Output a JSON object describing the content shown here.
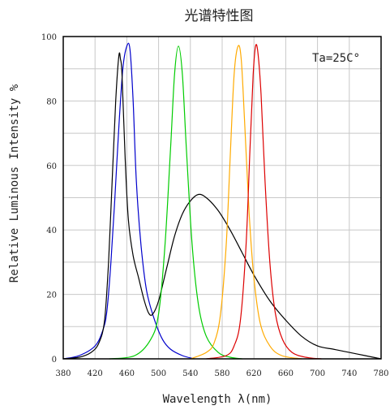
{
  "chart_data": {
    "type": "line",
    "title": "光谱特性图",
    "xlabel": "Wavelength λ(nm)",
    "ylabel": "Relative Luminous Intensity %",
    "annotation": "Ta=25C°",
    "xlim": [
      380,
      780
    ],
    "ylim": [
      0,
      100
    ],
    "xticks": [
      380,
      420,
      460,
      500,
      540,
      580,
      620,
      660,
      700,
      740,
      780
    ],
    "yticks": [
      0,
      20,
      40,
      60,
      80,
      100
    ],
    "grid": true,
    "legend": "none",
    "series": [
      {
        "color": "#0000cc",
        "points": [
          [
            380,
            0
          ],
          [
            400,
            1
          ],
          [
            420,
            4
          ],
          [
            430,
            9
          ],
          [
            435,
            15
          ],
          [
            440,
            30
          ],
          [
            445,
            50
          ],
          [
            450,
            72
          ],
          [
            455,
            90
          ],
          [
            460,
            97
          ],
          [
            464,
            96
          ],
          [
            468,
            80
          ],
          [
            472,
            55
          ],
          [
            478,
            35
          ],
          [
            485,
            21
          ],
          [
            495,
            12
          ],
          [
            505,
            6
          ],
          [
            515,
            3
          ],
          [
            530,
            1
          ],
          [
            545,
            0
          ]
        ]
      },
      {
        "color": "#000000",
        "points": [
          [
            380,
            0
          ],
          [
            400,
            0.5
          ],
          [
            415,
            2
          ],
          [
            425,
            5
          ],
          [
            432,
            12
          ],
          [
            437,
            30
          ],
          [
            442,
            58
          ],
          [
            446,
            80
          ],
          [
            450,
            94
          ],
          [
            452,
            93
          ],
          [
            454,
            88
          ],
          [
            458,
            62
          ],
          [
            462,
            43
          ],
          [
            468,
            32
          ],
          [
            475,
            25
          ],
          [
            482,
            18
          ],
          [
            488,
            14
          ],
          [
            493,
            14
          ],
          [
            500,
            18
          ],
          [
            510,
            28
          ],
          [
            520,
            38
          ],
          [
            530,
            45
          ],
          [
            540,
            49
          ],
          [
            550,
            51
          ],
          [
            560,
            50
          ],
          [
            575,
            46
          ],
          [
            590,
            40
          ],
          [
            605,
            33
          ],
          [
            620,
            26
          ],
          [
            640,
            18
          ],
          [
            660,
            12
          ],
          [
            680,
            7
          ],
          [
            700,
            4
          ],
          [
            720,
            3
          ],
          [
            740,
            2
          ],
          [
            760,
            1
          ],
          [
            780,
            0
          ]
        ]
      },
      {
        "color": "#00cc00",
        "points": [
          [
            438,
            0
          ],
          [
            470,
            1
          ],
          [
            490,
            6
          ],
          [
            500,
            14
          ],
          [
            508,
            35
          ],
          [
            515,
            65
          ],
          [
            520,
            88
          ],
          [
            525,
            97
          ],
          [
            530,
            88
          ],
          [
            535,
            65
          ],
          [
            542,
            36
          ],
          [
            550,
            17
          ],
          [
            560,
            7
          ],
          [
            575,
            2
          ],
          [
            590,
            0.5
          ],
          [
            605,
            0
          ]
        ]
      },
      {
        "color": "#ffaa00",
        "points": [
          [
            540,
            0
          ],
          [
            560,
            2
          ],
          [
            570,
            5
          ],
          [
            578,
            14
          ],
          [
            585,
            35
          ],
          [
            590,
            62
          ],
          [
            595,
            88
          ],
          [
            600,
            97
          ],
          [
            604,
            93
          ],
          [
            608,
            75
          ],
          [
            614,
            45
          ],
          [
            620,
            25
          ],
          [
            628,
            11
          ],
          [
            640,
            4
          ],
          [
            655,
            1
          ],
          [
            680,
            0
          ]
        ]
      },
      {
        "color": "#dd0000",
        "points": [
          [
            560,
            0
          ],
          [
            585,
            1
          ],
          [
            595,
            4
          ],
          [
            603,
            12
          ],
          [
            610,
            35
          ],
          [
            615,
            65
          ],
          [
            619,
            88
          ],
          [
            622,
            97
          ],
          [
            625,
            95
          ],
          [
            629,
            82
          ],
          [
            634,
            55
          ],
          [
            640,
            30
          ],
          [
            647,
            14
          ],
          [
            656,
            6
          ],
          [
            668,
            2
          ],
          [
            685,
            0.5
          ],
          [
            705,
            0
          ]
        ]
      }
    ]
  }
}
